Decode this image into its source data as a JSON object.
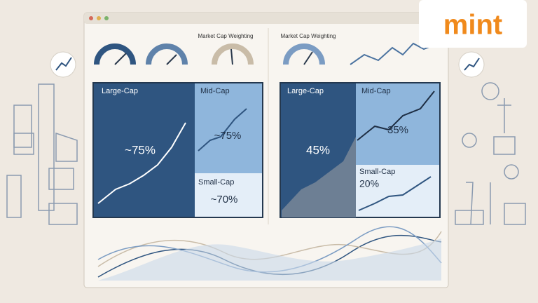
{
  "logo": "mint",
  "left": {
    "header": "Market Cap Weighting",
    "large": {
      "label": "Large-Cap",
      "value": "~75%"
    },
    "mid": {
      "label": "Mid-Cap",
      "value": "~75%"
    },
    "small": {
      "label": "Small-Cap",
      "value": "~70%"
    }
  },
  "right": {
    "header": "Market Cap Weighting",
    "large": {
      "label": "Large-Cap",
      "value": "45%"
    },
    "mid": {
      "label": "Mid-Cap",
      "value": "35%"
    },
    "small": {
      "label": "Small-Cap",
      "value": "20%"
    }
  }
}
